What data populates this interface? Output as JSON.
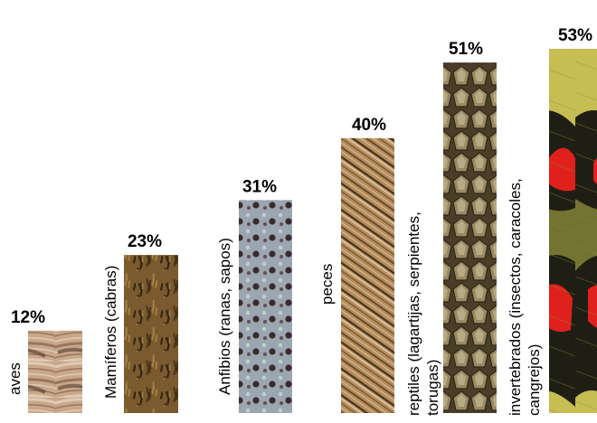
{
  "chart_data": {
    "type": "bar",
    "title": "",
    "xlabel": "",
    "ylabel": "",
    "ylim": [
      0,
      53
    ],
    "categories": [
      [
        "aves"
      ],
      [
        "Mamíferos (cabras)"
      ],
      [
        "Anfibios (ranas, sapos)"
      ],
      [
        "peces"
      ],
      [
        "reptiles (lagartijas, serpientes,",
        "torugas)"
      ],
      [
        "invertebrados (insectos, caracoles,",
        "cangrejos)"
      ]
    ],
    "values": [
      12,
      23,
      31,
      40,
      51,
      53
    ],
    "value_labels": [
      "12%",
      "23%",
      "31%",
      "40%",
      "51%",
      "53%"
    ],
    "bar_textures": [
      "feather",
      "fur",
      "spots",
      "scales-fish",
      "scales-snake",
      "wing"
    ],
    "colors": {
      "feather": [
        "#c9a78a",
        "#8a6a52",
        "#e6d3bf",
        "#5e4634"
      ],
      "fur": [
        "#7a5a2e",
        "#3a2a14",
        "#b08a4c",
        "#1e140a"
      ],
      "spots": [
        "#9aa6b0",
        "#3a2a30",
        "#c7cdd4",
        "#6a4a52"
      ],
      "scales-fish": [
        "#b58c5c",
        "#5a3e22",
        "#e0c9a4",
        "#3a2a18"
      ],
      "scales-snake": [
        "#9a8a62",
        "#4a3e28",
        "#cfc4a0",
        "#2e2618"
      ],
      "wing": [
        "#d9cf5a",
        "#1e1e14",
        "#e0201c",
        "#8a8a3a"
      ]
    }
  }
}
